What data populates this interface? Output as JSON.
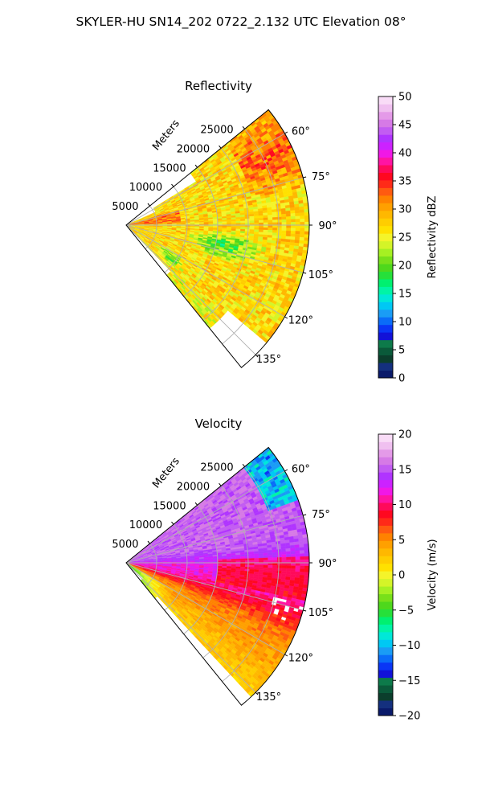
{
  "figure": {
    "suptitle": "SKYLER-HU  SN14_202  0722_2.132 UTC Elevation 08°"
  },
  "chart_data": [
    {
      "type": "heatmap",
      "projection": "polar-sector",
      "title": "Reflectivity",
      "radial_label": "Meters",
      "radial_ticks": [
        "5000",
        "10000",
        "15000",
        "20000",
        "25000"
      ],
      "angle_ticks": [
        "60°",
        "75°",
        "90°",
        "105°",
        "120°",
        "135°"
      ],
      "azimuth_range_deg": [
        51,
        141
      ],
      "range_max_m": 30000,
      "grid": true,
      "colorbar": {
        "label": "Reflectivity dBZ",
        "range": [
          0,
          50
        ],
        "ticks": [
          "0",
          "5",
          "10",
          "15",
          "20",
          "25",
          "30",
          "35",
          "40",
          "45",
          "50"
        ],
        "colors": [
          "#0a1a6a",
          "#14307e",
          "#0b3e2c",
          "#0a5a3a",
          "#0d7a4a",
          "#1212d8",
          "#0a36f5",
          "#0a6cf8",
          "#1a9cf5",
          "#00c8f4",
          "#00e8d8",
          "#00f4a6",
          "#00f070",
          "#26e03a",
          "#4ed81c",
          "#78e01a",
          "#a6f022",
          "#d4f428",
          "#f4f42a",
          "#ffe100",
          "#ffcd00",
          "#ffb800",
          "#ffa000",
          "#ff8200",
          "#ff5a10",
          "#ff2a18",
          "#ff0820",
          "#ff0a5a",
          "#ff14a2",
          "#f018e6",
          "#cc22ff",
          "#b034ff",
          "#c25cf2",
          "#d67ae6",
          "#e49ae8",
          "#f0c0f0",
          "#f9dcf7"
        ]
      },
      "dominant_values_dbz": [
        25,
        35
      ],
      "notes": "mostly 25-32 dBZ with red 35-38 dBZ pockets near 60-75° at far range and near origin at ~80°; green 17-23 dBZ zone around 95-110° mid range"
    },
    {
      "type": "heatmap",
      "projection": "polar-sector",
      "title": "Velocity",
      "radial_label": "Meters",
      "radial_ticks": [
        "5000",
        "10000",
        "15000",
        "20000",
        "25000"
      ],
      "angle_ticks": [
        "60°",
        "75°",
        "90°",
        "105°",
        "120°",
        "135°"
      ],
      "azimuth_range_deg": [
        51,
        141
      ],
      "range_max_m": 30000,
      "grid": true,
      "colorbar": {
        "label": "Velocity (m/s)",
        "range": [
          -20,
          20
        ],
        "ticks": [
          "−20",
          "−15",
          "−10",
          "−5",
          "0",
          "5",
          "10",
          "15",
          "20"
        ],
        "colors": [
          "#0a1a6a",
          "#14307e",
          "#0b3e2c",
          "#0a5a3a",
          "#0d7a4a",
          "#1212d8",
          "#0a36f5",
          "#0a6cf8",
          "#1a9cf5",
          "#00c8f4",
          "#00e8d8",
          "#00f4a6",
          "#00f070",
          "#26e03a",
          "#4ed81c",
          "#78e01a",
          "#a6f022",
          "#d4f428",
          "#f4f42a",
          "#ffe100",
          "#ffcd00",
          "#ffb800",
          "#ffa000",
          "#ff8200",
          "#ff5a10",
          "#ff2a18",
          "#ff0820",
          "#ff0a5a",
          "#ff14a2",
          "#f018e6",
          "#cc22ff",
          "#b034ff",
          "#c25cf2",
          "#d67ae6",
          "#e49ae8",
          "#f0c0f0",
          "#f9dcf7"
        ]
      },
      "dominant_values_ms": [
        -3,
        16
      ],
      "notes": "purple ~14-16 m/s north of 90°, magenta ~12 m/s near 90-100° far range, red ~9 m/s band near 100-110°, orange/yellow 2-6 m/s toward 115-141°, green near origin at 135-141°, blue ~-12 m/s patch near 60-70° at far range"
    }
  ]
}
